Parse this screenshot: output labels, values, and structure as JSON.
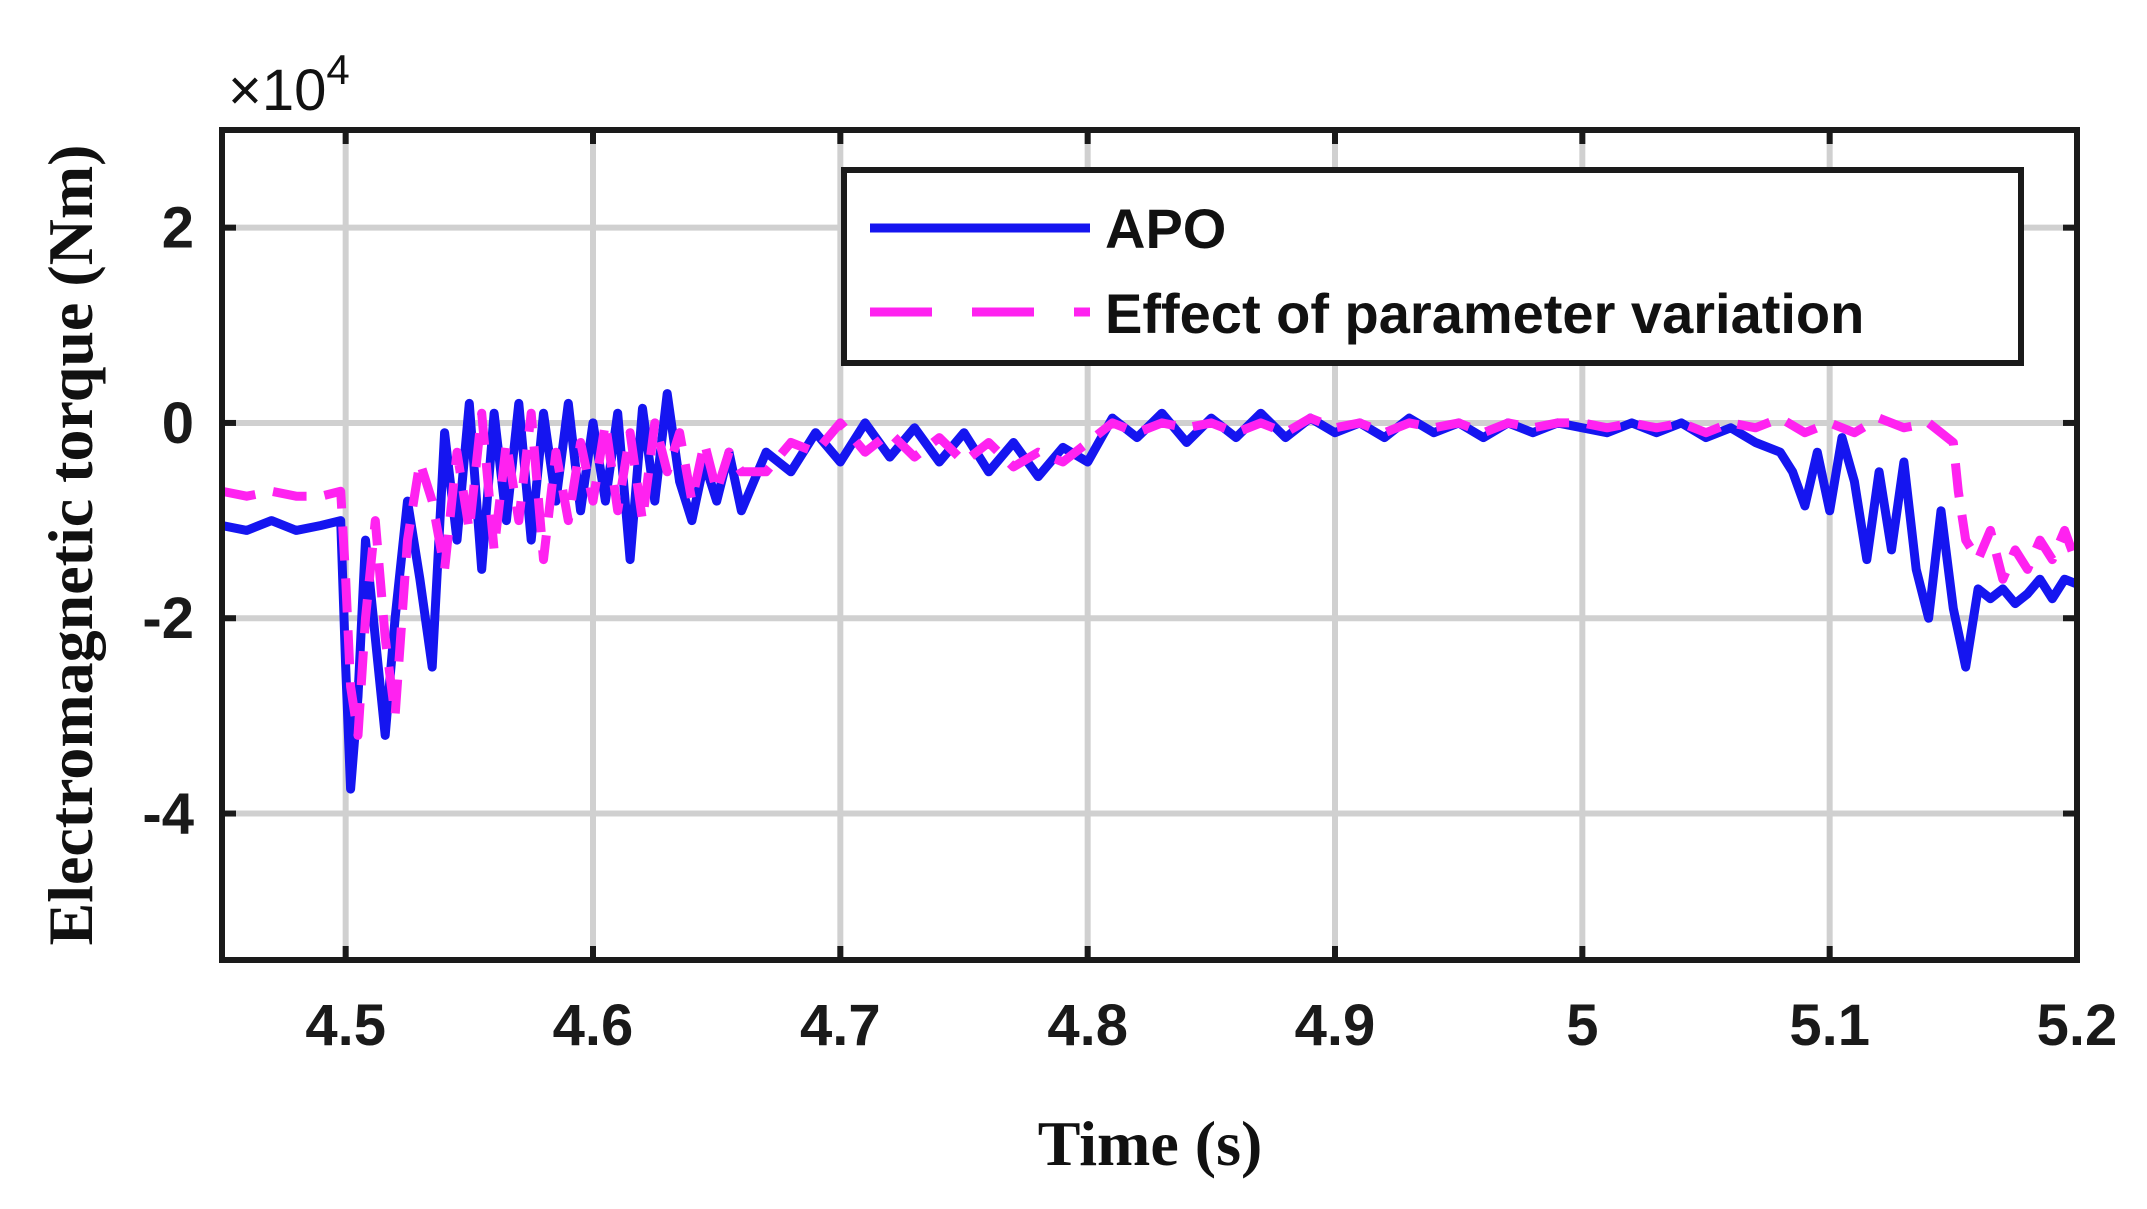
{
  "chart_data": {
    "type": "line",
    "xlabel": "Time (s)",
    "ylabel": "Electromagnetic torque (Nm)",
    "exponent_label": "×10",
    "exponent_power": "4",
    "xlim": [
      4.45,
      5.2
    ],
    "ylim": [
      -5.5,
      3.0
    ],
    "y_scale": 10000,
    "grid": true,
    "legend_position": "top-right",
    "x_ticks": [
      4.5,
      4.6,
      4.7,
      4.8,
      4.9,
      5.0,
      5.1,
      5.2
    ],
    "x_tick_labels": [
      "4.5",
      "4.6",
      "4.7",
      "4.8",
      "4.9",
      "5",
      "5.1",
      "5.2"
    ],
    "y_ticks": [
      2,
      0,
      -2,
      -4
    ],
    "y_tick_labels": [
      "2",
      "0",
      "-2",
      "-4"
    ],
    "series": [
      {
        "name": "APO",
        "color": "#1515f0",
        "style": "solid",
        "x": [
          4.45,
          4.46,
          4.47,
          4.48,
          4.49,
          4.498,
          4.5,
          4.502,
          4.505,
          4.508,
          4.512,
          4.516,
          4.52,
          4.525,
          4.53,
          4.535,
          4.54,
          4.545,
          4.55,
          4.555,
          4.56,
          4.565,
          4.57,
          4.575,
          4.58,
          4.585,
          4.59,
          4.595,
          4.6,
          4.605,
          4.61,
          4.615,
          4.62,
          4.625,
          4.63,
          4.635,
          4.64,
          4.645,
          4.65,
          4.655,
          4.66,
          4.67,
          4.68,
          4.69,
          4.7,
          4.71,
          4.72,
          4.73,
          4.74,
          4.75,
          4.76,
          4.77,
          4.78,
          4.79,
          4.8,
          4.81,
          4.82,
          4.83,
          4.84,
          4.85,
          4.86,
          4.87,
          4.88,
          4.89,
          4.9,
          4.91,
          4.92,
          4.93,
          4.94,
          4.95,
          4.96,
          4.97,
          4.98,
          4.99,
          5.0,
          5.01,
          5.02,
          5.03,
          5.04,
          5.05,
          5.06,
          5.07,
          5.08,
          5.085,
          5.09,
          5.095,
          5.1,
          5.105,
          5.11,
          5.115,
          5.12,
          5.125,
          5.13,
          5.135,
          5.14,
          5.145,
          5.15,
          5.155,
          5.16,
          5.165,
          5.17,
          5.175,
          5.18,
          5.185,
          5.19,
          5.195,
          5.2
        ],
        "values": [
          -1.05,
          -1.1,
          -1.0,
          -1.1,
          -1.05,
          -1.0,
          -2.5,
          -3.75,
          -2.8,
          -1.2,
          -2.2,
          -3.2,
          -2.0,
          -0.8,
          -1.6,
          -2.5,
          -0.1,
          -1.2,
          0.2,
          -1.5,
          0.1,
          -1.0,
          0.2,
          -1.2,
          0.1,
          -0.8,
          0.2,
          -0.9,
          0.0,
          -0.8,
          0.1,
          -1.4,
          0.15,
          -0.8,
          0.3,
          -0.6,
          -1.0,
          -0.4,
          -0.8,
          -0.3,
          -0.9,
          -0.3,
          -0.5,
          -0.1,
          -0.4,
          0.0,
          -0.35,
          -0.05,
          -0.4,
          -0.1,
          -0.5,
          -0.2,
          -0.55,
          -0.25,
          -0.4,
          0.05,
          -0.15,
          0.1,
          -0.2,
          0.05,
          -0.15,
          0.1,
          -0.15,
          0.05,
          -0.1,
          0.0,
          -0.15,
          0.05,
          -0.1,
          0.0,
          -0.15,
          0.0,
          -0.1,
          0.0,
          -0.05,
          -0.1,
          0.0,
          -0.1,
          0.0,
          -0.15,
          -0.05,
          -0.2,
          -0.3,
          -0.5,
          -0.85,
          -0.3,
          -0.9,
          -0.15,
          -0.6,
          -1.4,
          -0.5,
          -1.3,
          -0.4,
          -1.5,
          -2.0,
          -0.9,
          -1.9,
          -2.5,
          -1.7,
          -1.8,
          -1.7,
          -1.85,
          -1.75,
          -1.6,
          -1.8,
          -1.6,
          -1.65
        ]
      },
      {
        "name": "Effect of parameter variation",
        "color": "#ff22f0",
        "style": "dashed",
        "x": [
          4.45,
          4.46,
          4.47,
          4.48,
          4.49,
          4.498,
          4.5,
          4.502,
          4.505,
          4.508,
          4.512,
          4.516,
          4.52,
          4.525,
          4.53,
          4.535,
          4.54,
          4.545,
          4.55,
          4.555,
          4.56,
          4.565,
          4.57,
          4.575,
          4.58,
          4.585,
          4.59,
          4.595,
          4.6,
          4.605,
          4.61,
          4.615,
          4.62,
          4.625,
          4.63,
          4.635,
          4.64,
          4.645,
          4.65,
          4.655,
          4.66,
          4.67,
          4.68,
          4.69,
          4.7,
          4.71,
          4.72,
          4.73,
          4.74,
          4.75,
          4.76,
          4.77,
          4.78,
          4.79,
          4.8,
          4.81,
          4.82,
          4.83,
          4.84,
          4.85,
          4.86,
          4.87,
          4.88,
          4.89,
          4.9,
          4.91,
          4.92,
          4.93,
          4.94,
          4.95,
          4.96,
          4.97,
          4.98,
          4.99,
          5.0,
          5.01,
          5.02,
          5.03,
          5.04,
          5.05,
          5.06,
          5.07,
          5.08,
          5.09,
          5.1,
          5.11,
          5.12,
          5.13,
          5.14,
          5.145,
          5.15,
          5.152,
          5.155,
          5.16,
          5.165,
          5.17,
          5.175,
          5.18,
          5.185,
          5.19,
          5.195,
          5.2
        ],
        "values": [
          -0.7,
          -0.75,
          -0.7,
          -0.75,
          -0.75,
          -0.7,
          -1.6,
          -2.7,
          -3.2,
          -2.0,
          -1.0,
          -2.2,
          -3.0,
          -1.2,
          -0.4,
          -0.8,
          -1.5,
          -0.3,
          -1.1,
          0.1,
          -1.3,
          -0.2,
          -1.0,
          0.1,
          -1.4,
          -0.3,
          -1.0,
          -0.2,
          -0.8,
          0.0,
          -0.9,
          -0.1,
          -1.0,
          0.0,
          -0.5,
          -0.1,
          -0.8,
          -0.2,
          -0.7,
          -0.3,
          -0.5,
          -0.5,
          -0.2,
          -0.3,
          0.0,
          -0.3,
          -0.1,
          -0.35,
          -0.15,
          -0.4,
          -0.2,
          -0.45,
          -0.3,
          -0.4,
          -0.2,
          0.0,
          -0.1,
          0.0,
          -0.05,
          0.0,
          -0.1,
          0.0,
          -0.1,
          0.05,
          -0.05,
          0.0,
          -0.1,
          0.0,
          -0.05,
          0.0,
          -0.1,
          0.0,
          -0.05,
          0.0,
          0.0,
          -0.05,
          0.0,
          -0.05,
          0.0,
          -0.1,
          0.0,
          -0.05,
          0.05,
          -0.1,
          0.0,
          -0.1,
          0.05,
          -0.05,
          0.0,
          -0.1,
          -0.2,
          -0.7,
          -1.2,
          -1.4,
          -1.1,
          -1.6,
          -1.3,
          -1.5,
          -1.2,
          -1.4,
          -1.1,
          -1.45
        ]
      }
    ]
  }
}
